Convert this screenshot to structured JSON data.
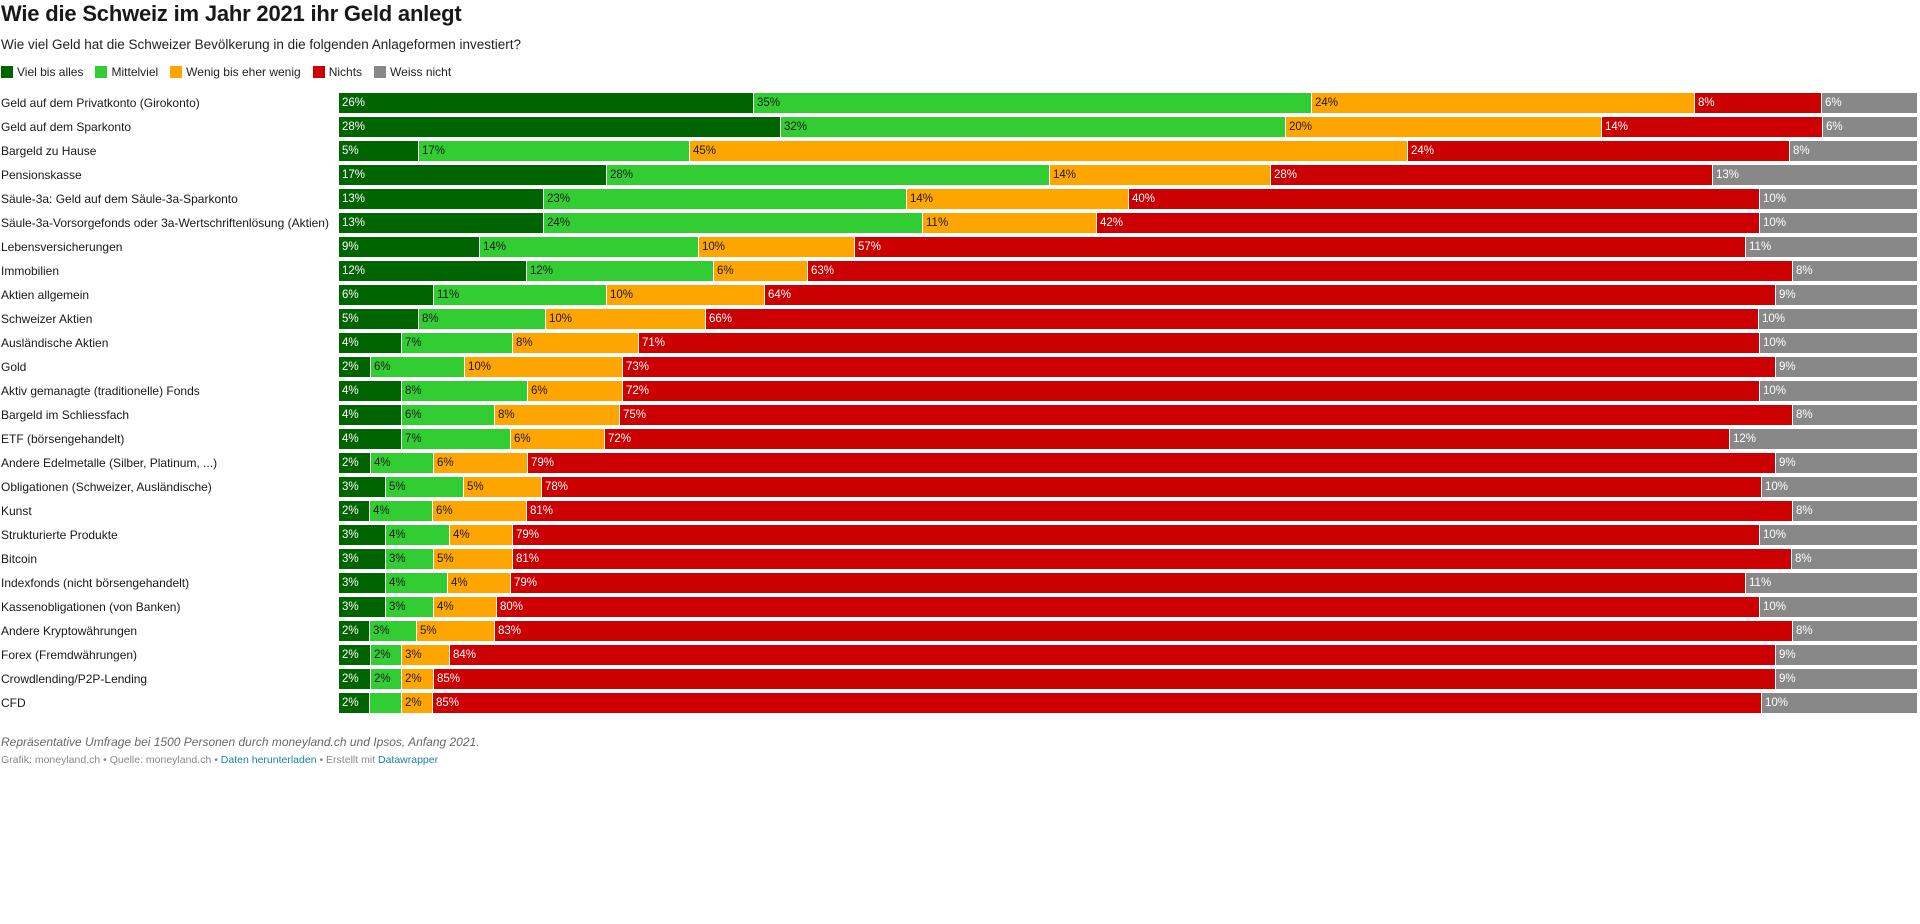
{
  "title": "Wie die Schweiz im Jahr 2021 ihr Geld anlegt",
  "subtitle": "Wie viel Geld hat die Schweizer Bevölkerung in die folgenden Anlageformen investiert?",
  "colors": {
    "viel": "#006400",
    "mittel": "#32cd32",
    "wenig": "#ffa500",
    "nichts": "#cc0000",
    "weiss": "#888888"
  },
  "chart_data": {
    "type": "bar",
    "orientation": "horizontal",
    "stacked": true,
    "normalized": true,
    "legend_position": "top-left",
    "grid": false,
    "title": "Wie die Schweiz im Jahr 2021 ihr Geld anlegt",
    "subtitle": "Wie viel Geld hat die Schweizer Bevölkerung in die folgenden Anlageformen investiert?",
    "series": [
      {
        "name": "Viel bis alles",
        "color": "#006400"
      },
      {
        "name": "Mittelviel",
        "color": "#32cd32"
      },
      {
        "name": "Wenig bis eher wenig",
        "color": "#ffa500"
      },
      {
        "name": "Nichts",
        "color": "#cc0000"
      },
      {
        "name": "Weiss nicht",
        "color": "#888888"
      }
    ],
    "categories": [
      {
        "label": "Geld auf dem Privatkonto (Girokonto)",
        "values": [
          26,
          35,
          24,
          8,
          6
        ],
        "labels": [
          "26%",
          "35%",
          "24%",
          "8%",
          "6%"
        ]
      },
      {
        "label": "Geld auf dem Sparkonto",
        "values": [
          28,
          32,
          20,
          14,
          6
        ],
        "labels": [
          "28%",
          "32%",
          "20%",
          "14%",
          "6%"
        ]
      },
      {
        "label": "Bargeld zu Hause",
        "values": [
          5,
          17,
          45,
          24,
          8
        ],
        "labels": [
          "5%",
          "17%",
          "45%",
          "24%",
          "8%"
        ]
      },
      {
        "label": "Pensionskasse",
        "values": [
          17,
          28,
          14,
          28,
          13
        ],
        "labels": [
          "17%",
          "28%",
          "14%",
          "28%",
          "13%"
        ]
      },
      {
        "label": "Säule-3a: Geld auf dem Säule-3a-Sparkonto",
        "values": [
          13,
          23,
          14,
          40,
          10
        ],
        "labels": [
          "13%",
          "23%",
          "14%",
          "40%",
          "10%"
        ]
      },
      {
        "label": "Säule-3a-Vorsorgefonds oder 3a-Wertschriftenlösung (Aktien)",
        "values": [
          13,
          24,
          11,
          42,
          10
        ],
        "labels": [
          "13%",
          "24%",
          "11%",
          "42%",
          "10%"
        ]
      },
      {
        "label": "Lebensversicherungen",
        "values": [
          9,
          14,
          10,
          57,
          11
        ],
        "labels": [
          "9%",
          "14%",
          "10%",
          "57%",
          "11%"
        ]
      },
      {
        "label": "Immobilien",
        "values": [
          12,
          12,
          6,
          63,
          8
        ],
        "labels": [
          "12%",
          "12%",
          "6%",
          "63%",
          "8%"
        ]
      },
      {
        "label": "Aktien allgemein",
        "values": [
          6,
          11,
          10,
          64,
          9
        ],
        "labels": [
          "6%",
          "11%",
          "10%",
          "64%",
          "9%"
        ]
      },
      {
        "label": "Schweizer Aktien",
        "values": [
          5,
          8,
          10,
          66,
          10
        ],
        "labels": [
          "5%",
          "8%",
          "10%",
          "66%",
          "10%"
        ]
      },
      {
        "label": "Ausländische Aktien",
        "values": [
          4,
          7,
          8,
          71,
          10
        ],
        "labels": [
          "4%",
          "7%",
          "8%",
          "71%",
          "10%"
        ]
      },
      {
        "label": "Gold",
        "values": [
          2,
          6,
          10,
          73,
          9
        ],
        "labels": [
          "2%",
          "6%",
          "10%",
          "73%",
          "9%"
        ]
      },
      {
        "label": "Aktiv gemanagte (traditionelle) Fonds",
        "values": [
          4,
          8,
          6,
          72,
          10
        ],
        "labels": [
          "4%",
          "8%",
          "6%",
          "72%",
          "10%"
        ]
      },
      {
        "label": "Bargeld im Schliessfach",
        "values": [
          4,
          6,
          8,
          75,
          8
        ],
        "labels": [
          "4%",
          "6%",
          "8%",
          "75%",
          "8%"
        ]
      },
      {
        "label": "ETF (börsengehandelt)",
        "values": [
          4,
          7,
          6,
          72,
          12
        ],
        "labels": [
          "4%",
          "7%",
          "6%",
          "72%",
          "12%"
        ]
      },
      {
        "label": "Andere Edelmetalle (Silber, Platinum, ...)",
        "values": [
          2,
          4,
          6,
          79,
          9
        ],
        "labels": [
          "2%",
          "4%",
          "6%",
          "79%",
          "9%"
        ]
      },
      {
        "label": "Obligationen (Schweizer, Ausländische)",
        "values": [
          3,
          5,
          5,
          78,
          10
        ],
        "labels": [
          "3%",
          "5%",
          "5%",
          "78%",
          "10%"
        ]
      },
      {
        "label": "Kunst",
        "values": [
          2,
          4,
          6,
          81,
          8
        ],
        "labels": [
          "2%",
          "4%",
          "6%",
          "81%",
          "8%"
        ]
      },
      {
        "label": "Strukturierte Produkte",
        "values": [
          3,
          4,
          4,
          79,
          10
        ],
        "labels": [
          "3%",
          "4%",
          "4%",
          "79%",
          "10%"
        ]
      },
      {
        "label": "Bitcoin",
        "values": [
          3,
          3,
          5,
          81,
          8
        ],
        "labels": [
          "3%",
          "3%",
          "5%",
          "81%",
          "8%"
        ]
      },
      {
        "label": "Indexfonds (nicht börsengehandelt)",
        "values": [
          3,
          4,
          4,
          79,
          11
        ],
        "labels": [
          "3%",
          "4%",
          "4%",
          "79%",
          "11%"
        ]
      },
      {
        "label": "Kassenobligationen (von Banken)",
        "values": [
          3,
          3,
          4,
          80,
          10
        ],
        "labels": [
          "3%",
          "3%",
          "4%",
          "80%",
          "10%"
        ]
      },
      {
        "label": "Andere Kryptowährungen",
        "values": [
          2,
          3,
          5,
          83,
          8
        ],
        "labels": [
          "2%",
          "3%",
          "5%",
          "83%",
          "8%"
        ]
      },
      {
        "label": "Forex (Fremdwährungen)",
        "values": [
          2,
          2,
          3,
          84,
          9
        ],
        "labels": [
          "2%",
          "2%",
          "3%",
          "84%",
          "9%"
        ]
      },
      {
        "label": "Crowdlending/P2P-Lending",
        "values": [
          2,
          2,
          2,
          85,
          9
        ],
        "labels": [
          "2%",
          "2%",
          "2%",
          "85%",
          "9%"
        ]
      },
      {
        "label": "CFD",
        "values": [
          2,
          2,
          2,
          85,
          10
        ],
        "labels": [
          "2%",
          "",
          "2%",
          "85%",
          "10%"
        ]
      }
    ]
  },
  "footnote": "Repräsentative Umfrage bei 1500 Personen durch moneyland.ch und Ipsos, Anfang 2021.",
  "credits": {
    "prefix": "Grafik: moneyland.ch • Quelle: moneyland.ch • ",
    "download_link": "Daten herunterladen",
    "middle": " • Erstellt mit ",
    "tool_link": "Datawrapper"
  }
}
